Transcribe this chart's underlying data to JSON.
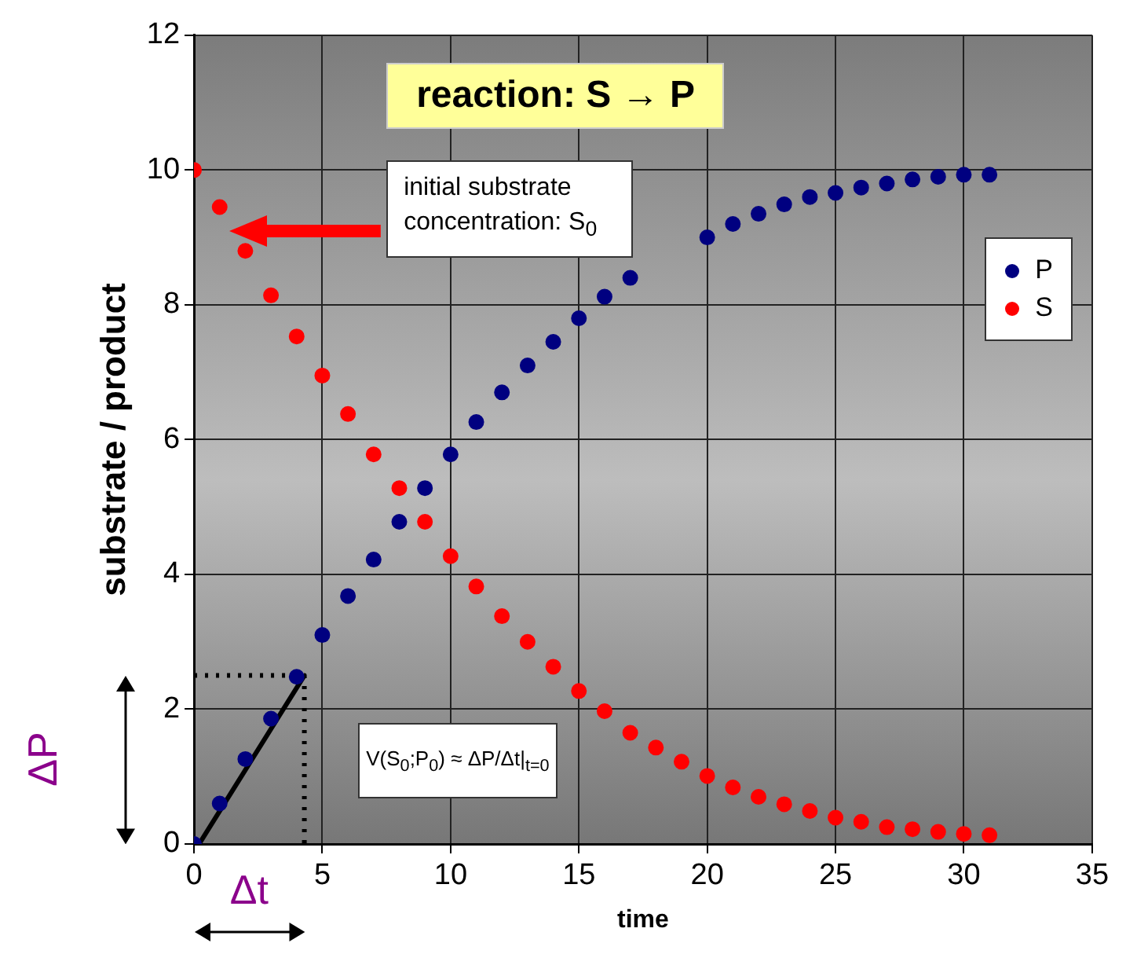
{
  "chart_data": {
    "type": "scatter",
    "title": "reaction: S → P",
    "xlabel": "time",
    "ylabel": "substrate / product",
    "x": [
      0,
      1,
      2,
      3,
      4,
      5,
      6,
      7,
      8,
      9,
      10,
      11,
      12,
      13,
      14,
      15,
      16,
      17,
      18,
      19,
      20,
      21,
      22,
      23,
      24,
      25,
      26,
      27,
      28,
      29,
      30,
      31
    ],
    "series": [
      {
        "name": "P",
        "color": "#000080",
        "values": [
          0,
          0.6,
          1.26,
          1.86,
          2.48,
          3.1,
          3.68,
          4.22,
          4.78,
          5.28,
          5.78,
          6.26,
          6.7,
          7.1,
          7.45,
          7.8,
          8.12,
          8.4,
          null,
          null,
          9.0,
          9.2,
          9.35,
          9.49,
          9.6,
          9.66,
          9.74,
          9.8,
          9.86,
          9.9,
          9.93,
          9.93
        ]
      },
      {
        "name": "S",
        "color": "#ff0000",
        "values": [
          10,
          9.45,
          8.8,
          8.14,
          7.53,
          6.95,
          6.38,
          5.78,
          5.28,
          4.78,
          4.27,
          3.82,
          3.38,
          3.0,
          2.63,
          2.27,
          1.97,
          1.65,
          1.43,
          1.22,
          1.01,
          0.84,
          0.7,
          0.59,
          0.49,
          0.39,
          0.33,
          0.25,
          0.22,
          0.18,
          0.15,
          0.13
        ]
      },
      {
        "type": "line",
        "color": "#000000",
        "line_style": "solid",
        "marker": "none",
        "x": [
          0.2,
          4.3
        ],
        "values": [
          0,
          2.5
        ]
      },
      {
        "type": "line",
        "color": "#000000",
        "line_style": "dotted",
        "marker": "none",
        "x": [
          0,
          4.3,
          4.3
        ],
        "values": [
          2.5,
          2.5,
          0
        ]
      }
    ],
    "annotations": [
      "initial substrate concentration: S$_{0}$",
      "V(S$_{0}$;P$_{0}$) ≈ ΔP/Δt|$_{t=0}$",
      "ΔP",
      "Δt"
    ],
    "xlim": [
      0,
      35
    ],
    "xticks": [
      0,
      5,
      10,
      15,
      20,
      25,
      30,
      35
    ],
    "ylim": [
      0,
      12
    ],
    "yticks": [
      0,
      2,
      4,
      6,
      8,
      10,
      12
    ],
    "grid": true,
    "legend": "right",
    "marker": "circle"
  }
}
